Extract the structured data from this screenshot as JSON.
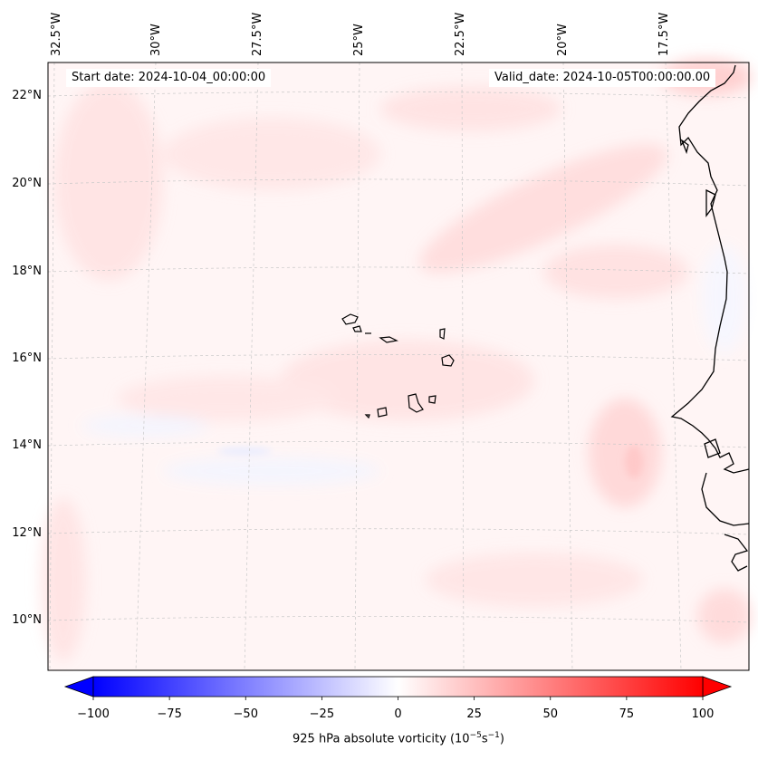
{
  "map": {
    "start_date": "Start date: 2024-10-04_00:00:00",
    "valid_date": "Valid_date: 2024-10-05T00:00:00.00",
    "lon_labels": [
      "32.5°W",
      "30°W",
      "27.5°W",
      "25°W",
      "22.5°W",
      "20°W",
      "17.5°W"
    ],
    "lat_labels": [
      "22°N",
      "20°N",
      "18°N",
      "16°N",
      "14°N",
      "12°N",
      "10°N"
    ],
    "field": "925 hPa absolute vorticity",
    "field_colors": {
      "negative": "#0000ff",
      "neutral": "#ffffff",
      "positive": "#ff0000"
    },
    "coastline_color": "#000000",
    "features": [
      "Cape Verde islands",
      "West African coastline"
    ]
  },
  "colorbar": {
    "ticks": [
      "−100",
      "−75",
      "−50",
      "−25",
      "0",
      "25",
      "50",
      "75",
      "100"
    ],
    "label_prefix": "925 hPa absolute vorticity (10",
    "label_exp1": "−5",
    "label_mid": "s",
    "label_exp2": "−1",
    "label_suffix": ")",
    "range": [
      -100,
      100
    ],
    "extend": "both",
    "levels": 41
  }
}
